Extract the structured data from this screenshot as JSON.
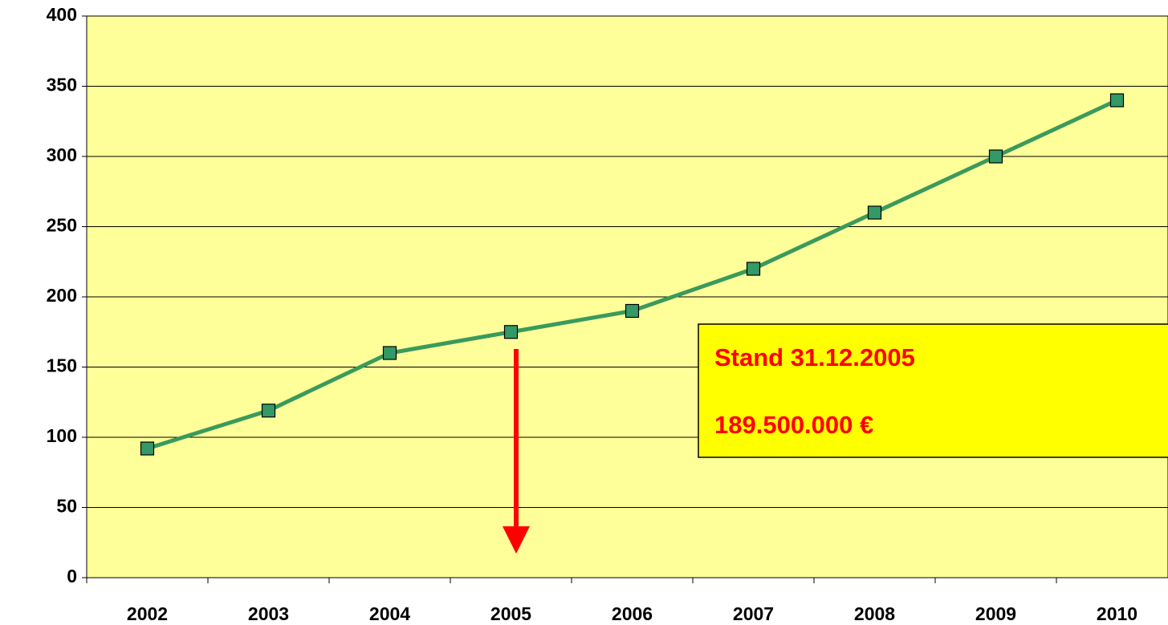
{
  "chart_data": {
    "type": "line",
    "categories": [
      "2002",
      "2003",
      "2004",
      "2005",
      "2006",
      "2007",
      "2008",
      "2009",
      "2010"
    ],
    "series": [
      {
        "color": "#3a9a5c",
        "marker_color": "#339966",
        "values": [
          92,
          119,
          160,
          175,
          190,
          220,
          260,
          300,
          340
        ]
      }
    ],
    "ylim": [
      0,
      400
    ],
    "yticks": [
      0,
      50,
      100,
      150,
      200,
      250,
      300,
      350,
      400
    ],
    "grid": true,
    "background": "#ffff99",
    "annotations": [
      "Stand 31.12.2005",
      "189.500.000 €"
    ]
  }
}
